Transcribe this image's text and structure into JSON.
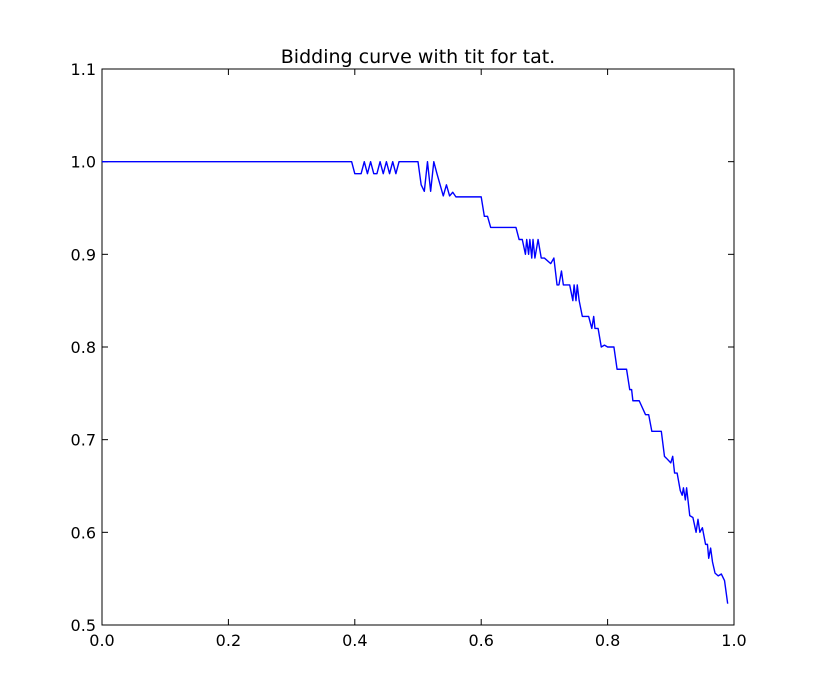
{
  "chart_data": {
    "type": "line",
    "title": "Bidding curve with tit for tat.",
    "xlabel": "",
    "ylabel": "",
    "xlim": [
      0.0,
      1.0
    ],
    "ylim": [
      0.5,
      1.1
    ],
    "grid": false,
    "xticks": [
      0.0,
      0.2,
      0.4,
      0.6,
      0.8,
      1.0
    ],
    "xtick_labels": [
      "0.0",
      "0.2",
      "0.4",
      "0.6",
      "0.8",
      "1.0"
    ],
    "yticks": [
      0.5,
      0.6,
      0.7,
      0.8,
      0.9,
      1.0,
      1.1
    ],
    "ytick_labels": [
      "0.5",
      "0.6",
      "0.7",
      "0.8",
      "0.9",
      "1.0",
      "1.1"
    ],
    "line_color": "#0000ff",
    "series": [
      {
        "x": [
          0.0,
          0.395,
          0.4,
          0.41,
          0.415,
          0.42,
          0.425,
          0.43,
          0.435,
          0.44,
          0.445,
          0.45,
          0.455,
          0.46,
          0.465,
          0.47,
          0.5,
          0.505,
          0.51,
          0.515,
          0.52,
          0.525,
          0.53,
          0.535,
          0.54,
          0.545,
          0.55,
          0.555,
          0.56,
          0.6,
          0.605,
          0.61,
          0.615,
          0.655,
          0.66,
          0.665,
          0.67,
          0.672,
          0.675,
          0.677,
          0.68,
          0.682,
          0.685,
          0.69,
          0.695,
          0.7,
          0.71,
          0.715,
          0.72,
          0.723,
          0.727,
          0.73,
          0.74,
          0.745,
          0.747,
          0.75,
          0.752,
          0.755,
          0.76,
          0.77,
          0.775,
          0.778,
          0.78,
          0.785,
          0.79,
          0.795,
          0.8,
          0.81,
          0.815,
          0.83,
          0.835,
          0.838,
          0.84,
          0.85,
          0.86,
          0.865,
          0.87,
          0.885,
          0.89,
          0.893,
          0.9,
          0.903,
          0.906,
          0.91,
          0.915,
          0.918,
          0.92,
          0.923,
          0.925,
          0.93,
          0.935,
          0.94,
          0.943,
          0.946,
          0.95,
          0.955,
          0.958,
          0.96,
          0.963,
          0.966,
          0.97,
          0.975,
          0.98,
          0.985,
          0.99
        ],
        "y": [
          1.0,
          1.0,
          0.987,
          0.987,
          1.0,
          0.987,
          1.0,
          0.987,
          0.987,
          1.0,
          0.987,
          1.0,
          0.987,
          1.0,
          0.987,
          1.0,
          1.0,
          0.975,
          0.968,
          1.0,
          0.968,
          1.0,
          0.987,
          0.975,
          0.963,
          0.975,
          0.963,
          0.967,
          0.962,
          0.962,
          0.941,
          0.941,
          0.929,
          0.929,
          0.916,
          0.916,
          0.9,
          0.916,
          0.9,
          0.916,
          0.896,
          0.916,
          0.896,
          0.916,
          0.896,
          0.896,
          0.89,
          0.896,
          0.867,
          0.867,
          0.882,
          0.867,
          0.867,
          0.85,
          0.867,
          0.85,
          0.867,
          0.85,
          0.833,
          0.833,
          0.82,
          0.833,
          0.82,
          0.82,
          0.8,
          0.802,
          0.8,
          0.8,
          0.776,
          0.776,
          0.754,
          0.754,
          0.742,
          0.742,
          0.727,
          0.727,
          0.709,
          0.709,
          0.682,
          0.68,
          0.675,
          0.682,
          0.664,
          0.664,
          0.645,
          0.64,
          0.648,
          0.635,
          0.648,
          0.618,
          0.616,
          0.6,
          0.614,
          0.6,
          0.605,
          0.587,
          0.587,
          0.572,
          0.583,
          0.568,
          0.556,
          0.553,
          0.555,
          0.548,
          0.523
        ]
      }
    ]
  }
}
